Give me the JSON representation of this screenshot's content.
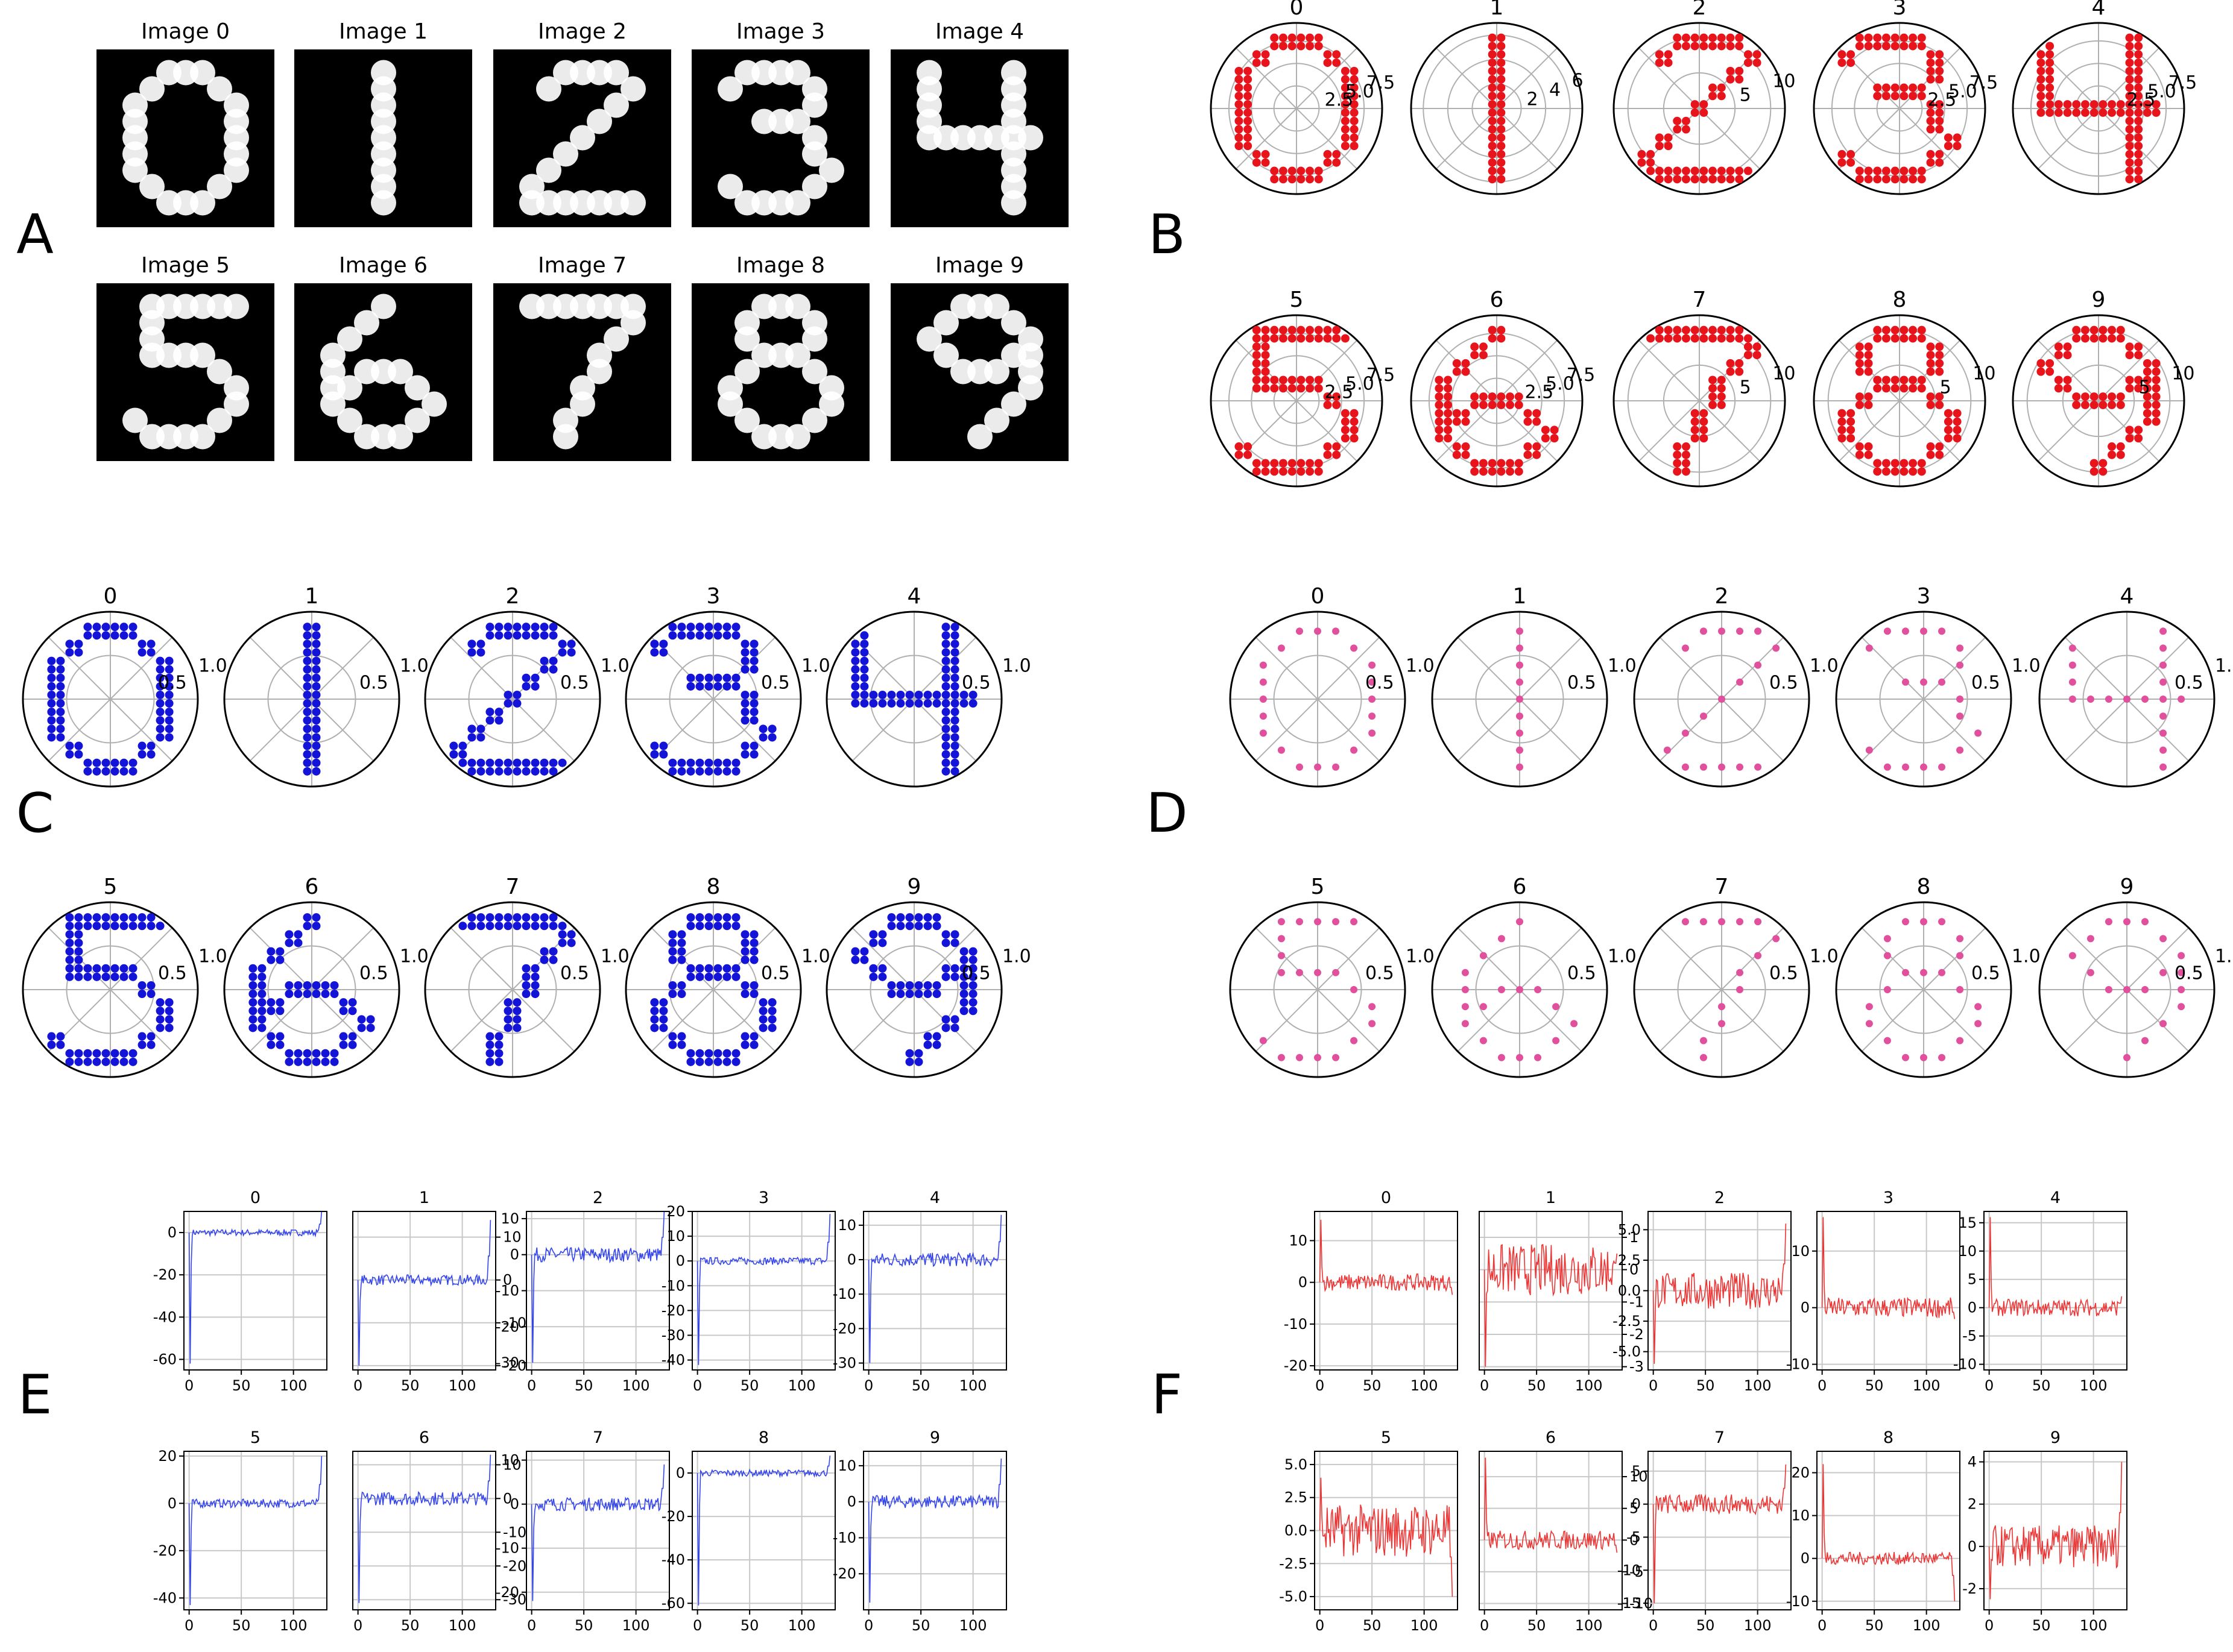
{
  "panels": {
    "A": {
      "letter": "A",
      "titles": [
        "Image 0",
        "Image 1",
        "Image 2",
        "Image 3",
        "Image 4",
        "Image 5",
        "Image 6",
        "Image 7",
        "Image 8",
        "Image 9"
      ]
    },
    "B": {
      "letter": "B",
      "titles": [
        "0",
        "1",
        "2",
        "3",
        "4",
        "5",
        "6",
        "7",
        "8",
        "9"
      ],
      "rtick_labels": [
        [
          "2.5",
          "5.0",
          "7.5"
        ],
        [
          "2",
          "4",
          "6"
        ],
        [
          "5",
          "10"
        ],
        [
          "2.5",
          "5.0",
          "7.5"
        ],
        [
          "2.5",
          "5.0",
          "7.5"
        ],
        [
          "2.5",
          "5.0",
          "7.5"
        ],
        [
          "2.5",
          "5.0",
          "7.5"
        ],
        [
          "5",
          "10"
        ],
        [
          "5",
          "10"
        ],
        [
          "5",
          "10"
        ]
      ]
    },
    "C": {
      "letter": "C",
      "titles": [
        "0",
        "1",
        "2",
        "3",
        "4",
        "5",
        "6",
        "7",
        "8",
        "9"
      ],
      "rtick_labels": [
        "0.5",
        "1.0"
      ]
    },
    "D": {
      "letter": "D",
      "titles": [
        "0",
        "1",
        "2",
        "3",
        "4",
        "5",
        "6",
        "7",
        "8",
        "9"
      ],
      "rtick_labels": [
        "0.5",
        "1.0"
      ]
    },
    "E": {
      "letter": "E",
      "titles": [
        "0",
        "1",
        "2",
        "3",
        "4",
        "5",
        "6",
        "7",
        "8",
        "9"
      ]
    },
    "F": {
      "letter": "F",
      "titles": [
        "0",
        "1",
        "2",
        "3",
        "4",
        "5",
        "6",
        "7",
        "8",
        "9"
      ]
    }
  },
  "colors": {
    "B": "#e8141c",
    "C": "#1414d8",
    "D": "#e0509c",
    "E": "#3344ee",
    "F": "#ee3333",
    "image_bg": "#000000",
    "digit": "#ffffff"
  },
  "chart_data": [
    {
      "panel": "A",
      "type": "heatmap",
      "description_values": "ten 28x28 grayscale MNIST-style digit images 0-9 (white strokes on black)",
      "labels": [
        "Image 0",
        "Image 1",
        "Image 2",
        "Image 3",
        "Image 4",
        "Image 5",
        "Image 6",
        "Image 7",
        "Image 8",
        "Image 9"
      ]
    },
    {
      "panel": "B",
      "type": "scatter",
      "projection": "polar",
      "subplots": [
        "0",
        "1",
        "2",
        "3",
        "4",
        "5",
        "6",
        "7",
        "8",
        "9"
      ],
      "rticks": [
        [
          2.5,
          5.0,
          7.5
        ],
        [
          2,
          4,
          6
        ],
        [
          5,
          10
        ],
        [
          2.5,
          5.0,
          7.5
        ],
        [
          2.5,
          5.0,
          7.5
        ],
        [
          2.5,
          5.0,
          7.5
        ],
        [
          2.5,
          5.0,
          7.5
        ],
        [
          5,
          10
        ],
        [
          5,
          10
        ],
        [
          5,
          10
        ]
      ],
      "rmax": [
        9.5,
        7,
        12,
        9.5,
        9.5,
        9.5,
        9.5,
        12,
        12,
        12
      ]
    },
    {
      "panel": "C",
      "type": "scatter",
      "projection": "polar",
      "subplots": [
        "0",
        "1",
        "2",
        "3",
        "4",
        "5",
        "6",
        "7",
        "8",
        "9"
      ],
      "rticks": [
        0.5,
        1.0
      ],
      "rmax": 1.0
    },
    {
      "panel": "D",
      "type": "scatter",
      "projection": "polar",
      "subplots": [
        "0",
        "1",
        "2",
        "3",
        "4",
        "5",
        "6",
        "7",
        "8",
        "9"
      ],
      "rticks": [
        0.5,
        1.0
      ],
      "rmax": 1.0
    },
    {
      "panel": "E",
      "type": "line",
      "grid": true,
      "subplots": [
        {
          "title": "0",
          "xticks": [
            0,
            50,
            100
          ],
          "yticks": [
            0,
            -20,
            -40,
            -60
          ],
          "ylim": [
            -65,
            10
          ],
          "spike_first": -62,
          "end": 10,
          "noise": 1.5,
          "yright": false
        },
        {
          "title": "1",
          "xticks": [
            0,
            50,
            100
          ],
          "yticks": [
            10,
            0,
            -10,
            -20
          ],
          "ylim": [
            -21,
            16
          ],
          "spike_first": -20,
          "end": 14,
          "noise": 1.2,
          "yright": true
        },
        {
          "title": "2",
          "xticks": [
            0,
            50,
            100
          ],
          "yticks": [
            10,
            0,
            -10,
            -20,
            -30
          ],
          "ylim": [
            -32,
            12
          ],
          "spike_first": -30,
          "end": 12,
          "noise": 2,
          "yright": false
        },
        {
          "title": "3",
          "xticks": [
            0,
            50,
            100
          ],
          "yticks": [
            20,
            10,
            0,
            -10,
            -20,
            -30,
            -40
          ],
          "ylim": [
            -44,
            20
          ],
          "spike_first": -42,
          "end": 19,
          "noise": 1.5,
          "yright": false
        },
        {
          "title": "4",
          "xticks": [
            0,
            50,
            100
          ],
          "yticks": [
            10,
            0,
            -10,
            -20,
            -30
          ],
          "ylim": [
            -32,
            14
          ],
          "spike_first": -30,
          "end": 13,
          "noise": 2,
          "yright": false
        },
        {
          "title": "5",
          "xticks": [
            0,
            50,
            100
          ],
          "yticks": [
            20,
            0,
            -20,
            -40
          ],
          "ylim": [
            -45,
            22
          ],
          "spike_first": -43,
          "end": 20,
          "noise": 1.8,
          "yright": false
        },
        {
          "title": "6",
          "xticks": [
            0,
            50,
            100
          ],
          "yticks": [
            10,
            0,
            -10,
            -20,
            -30
          ],
          "ylim": [
            -33,
            14
          ],
          "spike_first": -31,
          "end": 13,
          "noise": 2,
          "yright": true
        },
        {
          "title": "7",
          "xticks": [
            0,
            50,
            100
          ],
          "yticks": [
            10,
            0,
            -10,
            -20
          ],
          "ylim": [
            -24,
            12
          ],
          "spike_first": -22,
          "end": 9,
          "noise": 1.5,
          "yright": false
        },
        {
          "title": "8",
          "xticks": [
            0,
            50,
            100
          ],
          "yticks": [
            0,
            -20,
            -40,
            -60
          ],
          "ylim": [
            -63,
            10
          ],
          "spike_first": -61,
          "end": 8,
          "noise": 1.5,
          "yright": false
        },
        {
          "title": "9",
          "xticks": [
            0,
            50,
            100
          ],
          "yticks": [
            10,
            0,
            -10,
            -20
          ],
          "ylim": [
            -30,
            14
          ],
          "spike_first": -28,
          "end": 12,
          "noise": 1.8,
          "yright": false
        }
      ],
      "xlim": [
        -5,
        132
      ],
      "n_points": 128
    },
    {
      "panel": "F",
      "type": "line",
      "grid": true,
      "subplots": [
        {
          "title": "0",
          "xticks": [
            0,
            50,
            100
          ],
          "yticks": [
            10,
            0,
            -10,
            -20
          ],
          "ylim": [
            -21,
            17
          ],
          "spike_first": 15,
          "end": -3,
          "noise": 2,
          "yright": false
        },
        {
          "title": "1",
          "xticks": [
            0,
            50,
            100
          ],
          "yticks": [
            1,
            0,
            -1,
            -2,
            -3
          ],
          "ylim": [
            -3.1,
            1.8
          ],
          "spike_first": -3,
          "end": 0.5,
          "noise": 0.8,
          "yright": true
        },
        {
          "title": "2",
          "xticks": [
            0,
            50,
            100
          ],
          "yticks": [
            5.0,
            2.5,
            0.0,
            -2.5,
            -5.0
          ],
          "ylim": [
            -6.5,
            6.5
          ],
          "spike_first": -6,
          "end": 5.5,
          "noise": 1.5,
          "yright": false
        },
        {
          "title": "3",
          "xticks": [
            0,
            50,
            100
          ],
          "yticks": [
            10,
            0,
            -10
          ],
          "ylim": [
            -11,
            17
          ],
          "spike_first": 16,
          "end": -2,
          "noise": 1.8,
          "yright": false
        },
        {
          "title": "4",
          "xticks": [
            0,
            50,
            100
          ],
          "yticks": [
            15,
            10,
            5,
            0,
            -5,
            -10
          ],
          "ylim": [
            -11,
            17
          ],
          "spike_first": 16,
          "end": 2,
          "noise": 1.5,
          "yright": false
        },
        {
          "title": "5",
          "xticks": [
            0,
            50,
            100
          ],
          "yticks": [
            5.0,
            2.5,
            0.0,
            -2.5,
            -5.0
          ],
          "ylim": [
            -6,
            6
          ],
          "spike_first": 4,
          "end": -5,
          "noise": 2,
          "yright": false
        },
        {
          "title": "6",
          "xticks": [
            0,
            50,
            100
          ],
          "yticks": [
            10,
            5,
            0,
            -5,
            -10
          ],
          "ylim": [
            -11,
            14
          ],
          "spike_first": 13,
          "end": -2,
          "noise": 1.5,
          "yright": true
        },
        {
          "title": "7",
          "xticks": [
            0,
            50,
            100
          ],
          "yticks": [
            5,
            0,
            -5,
            -10,
            -15
          ],
          "ylim": [
            -16,
            8
          ],
          "spike_first": -15,
          "end": 6,
          "noise": 1.5,
          "yright": false
        },
        {
          "title": "8",
          "xticks": [
            0,
            50,
            100
          ],
          "yticks": [
            20,
            10,
            0,
            -10
          ],
          "ylim": [
            -12,
            25
          ],
          "spike_first": 22,
          "end": -10,
          "noise": 1.5,
          "yright": false
        },
        {
          "title": "9",
          "xticks": [
            0,
            50,
            100
          ],
          "yticks": [
            4,
            2,
            0,
            -2
          ],
          "ylim": [
            -3,
            4.5
          ],
          "spike_first": -2.5,
          "end": 4,
          "noise": 1,
          "yright": false
        }
      ],
      "xlim": [
        -5,
        132
      ],
      "n_points": 128
    }
  ]
}
